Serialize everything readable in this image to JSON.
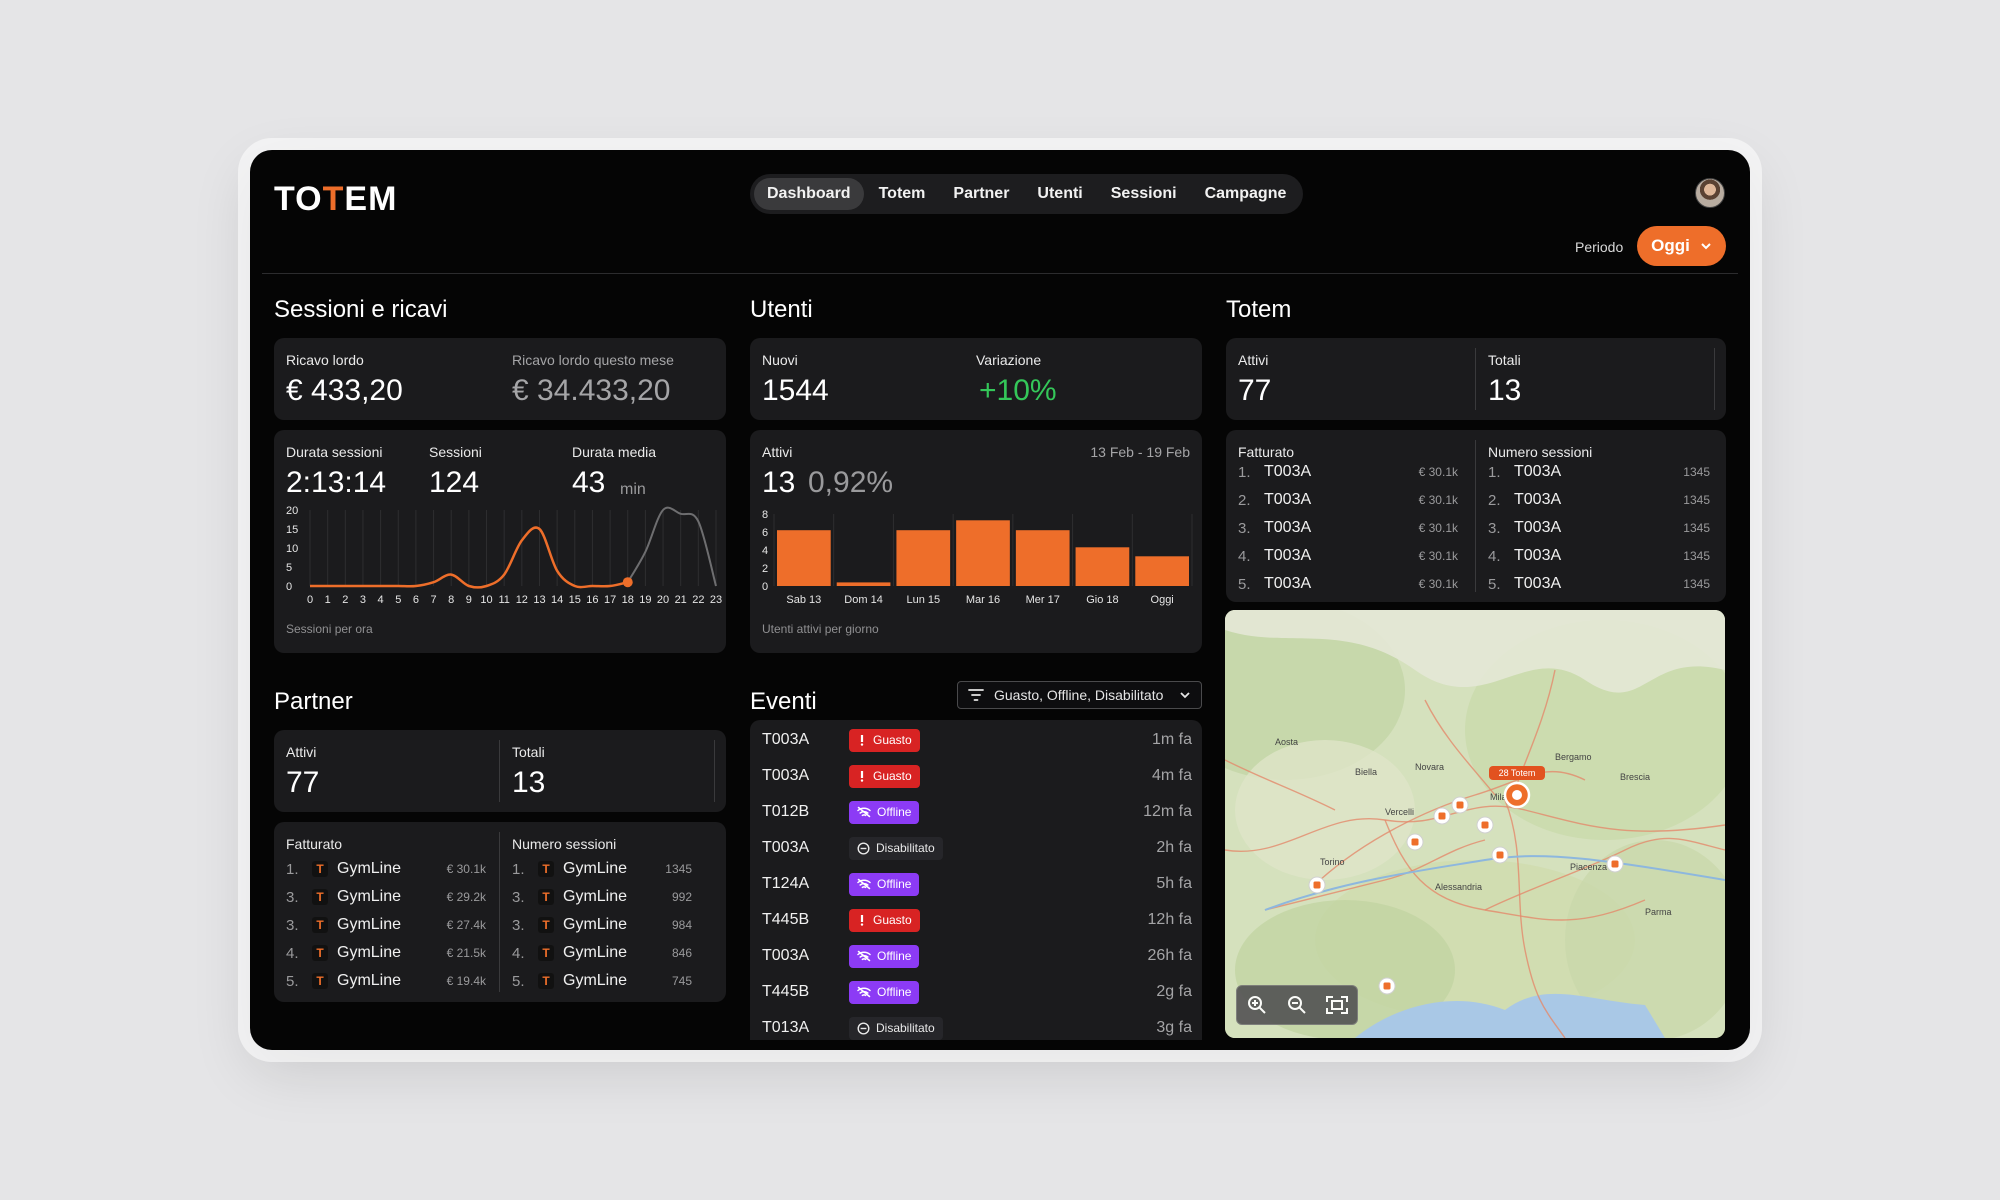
{
  "app": {
    "logo": "TOTEM"
  },
  "nav": {
    "tabs": [
      "Dashboard",
      "Totem",
      "Partner",
      "Utenti",
      "Sessioni",
      "Campagne"
    ],
    "active": "Dashboard"
  },
  "period": {
    "label": "Periodo",
    "value": "Oggi"
  },
  "sessions": {
    "title": "Sessioni e ricavi",
    "gross_label": "Ricavo lordo",
    "gross_value": "€ 433,20",
    "month_label": "Ricavo lordo questo mese",
    "month_value": "€ 34.433,20",
    "duration_label": "Durata sessioni",
    "duration_value": "2:13:14",
    "count_label": "Sessioni",
    "count_value": "124",
    "avg_label": "Durata media",
    "avg_value": "43",
    "avg_unit": "min",
    "chart_caption": "Sessioni per ora"
  },
  "users": {
    "title": "Utenti",
    "new_label": "Nuovi",
    "new_value": "1544",
    "change_label": "Variazione",
    "change_value": "+10%",
    "active_label": "Attivi",
    "active_value": "13",
    "active_pct": "0,92%",
    "date_range": "13 Feb - 19 Feb",
    "chart_caption": "Utenti attivi per giorno"
  },
  "totem": {
    "title": "Totem",
    "active_label": "Attivi",
    "active_value": "77",
    "total_label": "Totali",
    "total_value": "13",
    "revenue_label": "Fatturato",
    "sessions_label": "Numero sessioni",
    "revenue_rank": [
      {
        "n": "1.",
        "name": "T003A",
        "val": "€ 30.1k"
      },
      {
        "n": "2.",
        "name": "T003A",
        "val": "€ 30.1k"
      },
      {
        "n": "3.",
        "name": "T003A",
        "val": "€ 30.1k"
      },
      {
        "n": "4.",
        "name": "T003A",
        "val": "€ 30.1k"
      },
      {
        "n": "5.",
        "name": "T003A",
        "val": "€ 30.1k"
      }
    ],
    "sessions_rank": [
      {
        "n": "1.",
        "name": "T003A",
        "val": "1345"
      },
      {
        "n": "2.",
        "name": "T003A",
        "val": "1345"
      },
      {
        "n": "3.",
        "name": "T003A",
        "val": "1345"
      },
      {
        "n": "4.",
        "name": "T003A",
        "val": "1345"
      },
      {
        "n": "5.",
        "name": "T003A",
        "val": "1345"
      }
    ]
  },
  "partner": {
    "title": "Partner",
    "active_label": "Attivi",
    "active_value": "77",
    "total_label": "Totali",
    "total_value": "13",
    "revenue_label": "Fatturato",
    "sessions_label": "Numero sessioni",
    "revenue_rank": [
      {
        "n": "1.",
        "name": "GymLine",
        "val": "€ 30.1k"
      },
      {
        "n": "3.",
        "name": "GymLine",
        "val": "€ 29.2k"
      },
      {
        "n": "3.",
        "name": "GymLine",
        "val": "€ 27.4k"
      },
      {
        "n": "4.",
        "name": "GymLine",
        "val": "€ 21.5k"
      },
      {
        "n": "5.",
        "name": "GymLine",
        "val": "€ 19.4k"
      }
    ],
    "sessions_rank": [
      {
        "n": "1.",
        "name": "GymLine",
        "val": "1345"
      },
      {
        "n": "3.",
        "name": "GymLine",
        "val": "992"
      },
      {
        "n": "3.",
        "name": "GymLine",
        "val": "984"
      },
      {
        "n": "4.",
        "name": "GymLine",
        "val": "846"
      },
      {
        "n": "5.",
        "name": "GymLine",
        "val": "745"
      }
    ]
  },
  "events": {
    "title": "Eventi",
    "filter": "Guasto, Offline, Disabilitato",
    "rows": [
      {
        "id": "T003A",
        "type": "guasto",
        "label": "Guasto",
        "time": "1m fa"
      },
      {
        "id": "T003A",
        "type": "guasto",
        "label": "Guasto",
        "time": "4m fa"
      },
      {
        "id": "T012B",
        "type": "offline",
        "label": "Offline",
        "time": "12m fa"
      },
      {
        "id": "T003A",
        "type": "disab",
        "label": "Disabilitato",
        "time": "2h fa"
      },
      {
        "id": "T124A",
        "type": "offline",
        "label": "Offline",
        "time": "5h fa"
      },
      {
        "id": "T445B",
        "type": "guasto",
        "label": "Guasto",
        "time": "12h fa"
      },
      {
        "id": "T003A",
        "type": "offline",
        "label": "Offline",
        "time": "26h fa"
      },
      {
        "id": "T445B",
        "type": "offline",
        "label": "Offline",
        "time": "2g fa"
      },
      {
        "id": "T013A",
        "type": "disab",
        "label": "Disabilitato",
        "time": "3g fa"
      }
    ]
  },
  "map": {
    "cluster_label": "28 Totem",
    "cities": [
      "Torino",
      "Milano",
      "Novara",
      "Bergamo",
      "Brescia",
      "Piacenza",
      "Alessandria",
      "Parma",
      "Aosta",
      "Biella",
      "Vercelli"
    ]
  },
  "colors": {
    "accent": "#ee6e2a",
    "guasto": "#d82323",
    "offline": "#8c3bf5",
    "positive": "#34c759"
  },
  "chart_data": [
    {
      "type": "line",
      "caption": "Sessioni per ora",
      "x": [
        0,
        1,
        2,
        3,
        4,
        5,
        6,
        7,
        8,
        9,
        10,
        11,
        12,
        13,
        14,
        15,
        16,
        17,
        18,
        19,
        20,
        21,
        22,
        23
      ],
      "series": [
        {
          "values": [
            0,
            0,
            0,
            0,
            0,
            0,
            0,
            1,
            3,
            0,
            0,
            3,
            12,
            15,
            4,
            0,
            0,
            0,
            1,
            null,
            null,
            null,
            null,
            null
          ]
        }
      ],
      "projection": [
        null,
        null,
        null,
        null,
        null,
        null,
        null,
        null,
        null,
        null,
        null,
        null,
        null,
        null,
        null,
        null,
        null,
        null,
        1,
        9,
        20,
        19,
        17,
        0
      ],
      "yticks": [
        0,
        5,
        10,
        15,
        20
      ],
      "ylim": [
        0,
        20
      ]
    },
    {
      "type": "bar",
      "caption": "Utenti attivi per giorno",
      "categories": [
        "Sab 13",
        "Dom 14",
        "Lun 15",
        "Mar 16",
        "Mer 17",
        "Gio 18",
        "Oggi"
      ],
      "values": [
        6.2,
        0.4,
        6.2,
        7.3,
        6.2,
        4.3,
        3.3
      ],
      "yticks": [
        0,
        2,
        4,
        6,
        8
      ],
      "ylim": [
        0,
        8
      ]
    }
  ]
}
